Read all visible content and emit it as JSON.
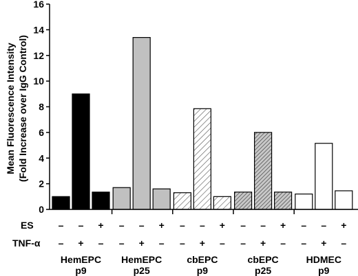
{
  "chart_data": {
    "type": "bar",
    "title": "",
    "ylabel_line1": "Mean Fluorescence Intensity",
    "ylabel_line2": "(Fold Increase over IgG Control)",
    "ylim": [
      0,
      16
    ],
    "yticks": [
      "0",
      "2",
      "4",
      "6",
      "8",
      "10",
      "12",
      "14",
      "16"
    ],
    "grid": false,
    "legend": "none",
    "row_labels": {
      "es": "ES",
      "tnf": "TNF-α"
    },
    "groups": [
      {
        "label_line1": "HemEPC",
        "label_line2": "p9",
        "fill": "#000000",
        "pattern": "solid",
        "bars": [
          {
            "es": "–",
            "tnf": "–",
            "value": 1.0
          },
          {
            "es": "–",
            "tnf": "+",
            "value": 9.0
          },
          {
            "es": "+",
            "tnf": "–",
            "value": 1.35
          }
        ]
      },
      {
        "label_line1": "HemEPC",
        "label_line2": "p25",
        "fill": "#c0c0c0",
        "pattern": "solid",
        "bars": [
          {
            "es": "–",
            "tnf": "–",
            "value": 1.7
          },
          {
            "es": "–",
            "tnf": "+",
            "value": 13.4
          },
          {
            "es": "+",
            "tnf": "–",
            "value": 1.6
          }
        ]
      },
      {
        "label_line1": "cbEPC",
        "label_line2": "p9",
        "fill": "#ffffff",
        "pattern": "light-diagonal",
        "bars": [
          {
            "es": "–",
            "tnf": "–",
            "value": 1.3
          },
          {
            "es": "–",
            "tnf": "+",
            "value": 7.85
          },
          {
            "es": "+",
            "tnf": "–",
            "value": 1.0
          }
        ]
      },
      {
        "label_line1": "cbEPC",
        "label_line2": "p25",
        "fill": "#c8c8c8",
        "pattern": "dense-diagonal",
        "bars": [
          {
            "es": "–",
            "tnf": "–",
            "value": 1.35
          },
          {
            "es": "–",
            "tnf": "+",
            "value": 6.0
          },
          {
            "es": "+",
            "tnf": "–",
            "value": 1.35
          }
        ]
      },
      {
        "label_line1": "HDMEC",
        "label_line2": "p9",
        "fill": "#ffffff",
        "pattern": "solid",
        "bars": [
          {
            "es": "–",
            "tnf": "–",
            "value": 1.2
          },
          {
            "es": "–",
            "tnf": "+",
            "value": 5.15
          },
          {
            "es": "+",
            "tnf": "–",
            "value": 1.45
          }
        ]
      }
    ]
  }
}
